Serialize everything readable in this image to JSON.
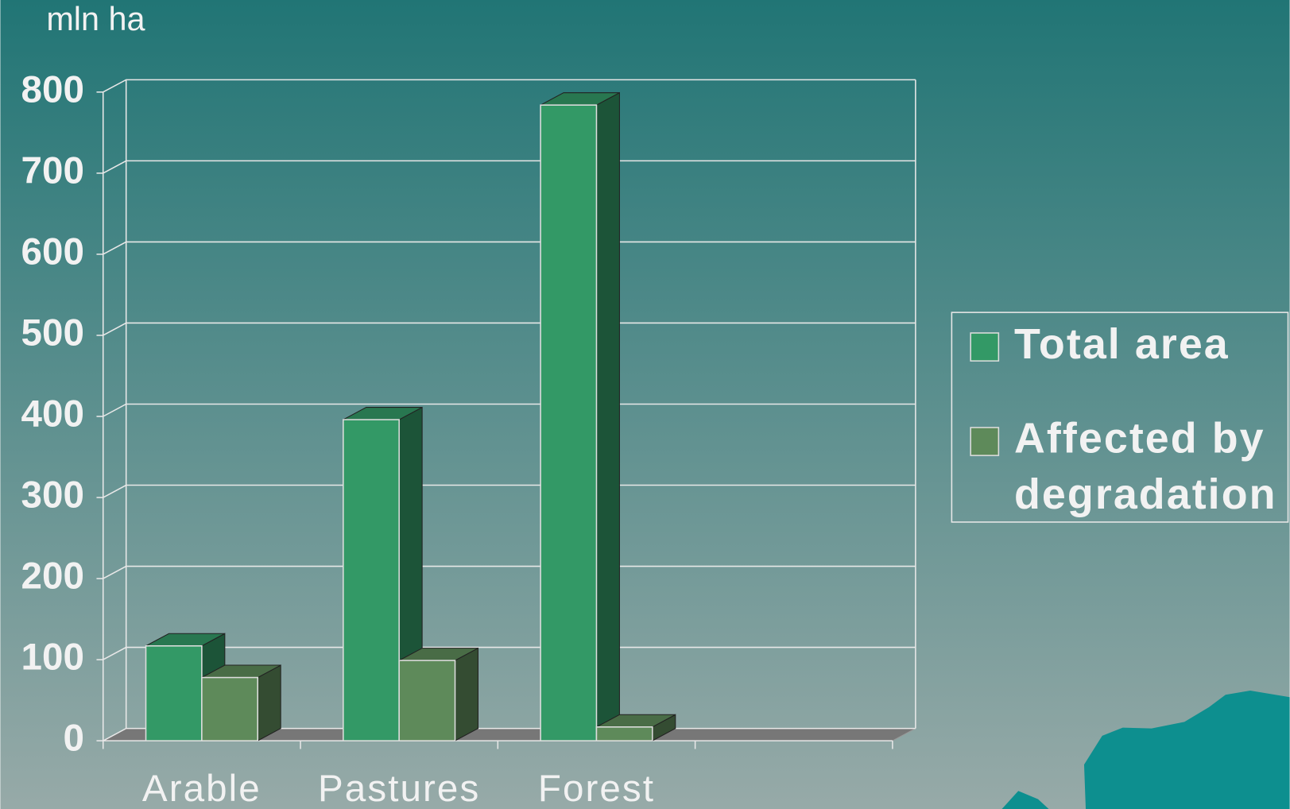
{
  "chart_data": {
    "type": "bar3d",
    "y_axis_label": "mln ha",
    "categories": [
      "Arable",
      "Pastures",
      "Forest",
      null
    ],
    "series": [
      {
        "name": "Total area",
        "color": "#339966",
        "values": [
          117,
          396,
          784,
          null
        ]
      },
      {
        "name": "Affected by degradation",
        "color": "#5e8a5a",
        "values": [
          78,
          99,
          17,
          null
        ]
      }
    ],
    "ylim": [
      0,
      800
    ],
    "yticks": [
      0,
      100,
      200,
      300,
      400,
      500,
      600,
      700,
      800
    ],
    "grid": true,
    "legend": "right"
  }
}
